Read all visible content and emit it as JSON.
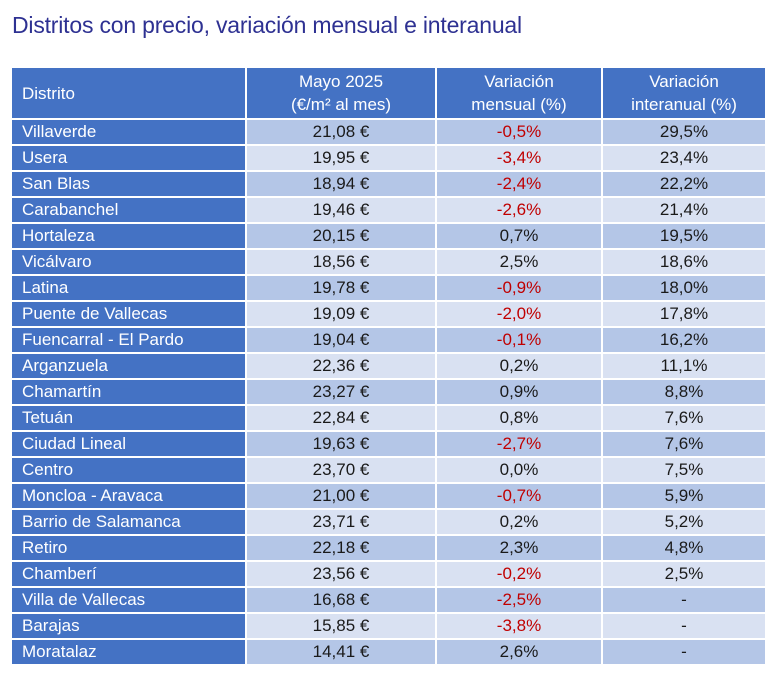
{
  "title": "Distritos con precio, variación mensual e interanual",
  "headers": {
    "district": "Distrito",
    "price_line1": "Mayo 2025",
    "price_line2": "(€/m² al mes)",
    "monthly_line1": "Variación",
    "monthly_line2": "mensual (%)",
    "yearly_line1": "Variación",
    "yearly_line2": "interanual (%)"
  },
  "colors": {
    "header_bg": "#4472c4",
    "row_dark": "#b4c6e7",
    "row_light": "#d9e1f2",
    "negative": "#c00000",
    "title": "#2e3192"
  },
  "rows": [
    {
      "district": "Villaverde",
      "price": "21,08 €",
      "monthly": "-0,5%",
      "yearly": "29,5%"
    },
    {
      "district": "Usera",
      "price": "19,95 €",
      "monthly": "-3,4%",
      "yearly": "23,4%"
    },
    {
      "district": "San Blas",
      "price": "18,94 €",
      "monthly": "-2,4%",
      "yearly": "22,2%"
    },
    {
      "district": "Carabanchel",
      "price": "19,46 €",
      "monthly": "-2,6%",
      "yearly": "21,4%"
    },
    {
      "district": "Hortaleza",
      "price": "20,15 €",
      "monthly": "0,7%",
      "yearly": "19,5%"
    },
    {
      "district": "Vicálvaro",
      "price": "18,56 €",
      "monthly": "2,5%",
      "yearly": "18,6%"
    },
    {
      "district": "Latina",
      "price": "19,78 €",
      "monthly": "-0,9%",
      "yearly": "18,0%"
    },
    {
      "district": "Puente de Vallecas",
      "price": "19,09 €",
      "monthly": "-2,0%",
      "yearly": "17,8%"
    },
    {
      "district": "Fuencarral - El Pardo",
      "price": "19,04 €",
      "monthly": "-0,1%",
      "yearly": "16,2%"
    },
    {
      "district": "Arganzuela",
      "price": "22,36 €",
      "monthly": "0,2%",
      "yearly": "11,1%"
    },
    {
      "district": "Chamartín",
      "price": "23,27 €",
      "monthly": "0,9%",
      "yearly": "8,8%"
    },
    {
      "district": "Tetuán",
      "price": "22,84 €",
      "monthly": "0,8%",
      "yearly": "7,6%"
    },
    {
      "district": "Ciudad Lineal",
      "price": "19,63 €",
      "monthly": "-2,7%",
      "yearly": "7,6%"
    },
    {
      "district": "Centro",
      "price": "23,70 €",
      "monthly": "0,0%",
      "yearly": "7,5%"
    },
    {
      "district": "Moncloa - Aravaca",
      "price": "21,00 €",
      "monthly": "-0,7%",
      "yearly": "5,9%"
    },
    {
      "district": "Barrio de Salamanca",
      "price": "23,71 €",
      "monthly": "0,2%",
      "yearly": "5,2%"
    },
    {
      "district": "Retiro",
      "price": "22,18 €",
      "monthly": "2,3%",
      "yearly": "4,8%"
    },
    {
      "district": "Chamberí",
      "price": "23,56 €",
      "monthly": "-0,2%",
      "yearly": "2,5%"
    },
    {
      "district": "Villa de Vallecas",
      "price": "16,68 €",
      "monthly": "-2,5%",
      "yearly": "-"
    },
    {
      "district": "Barajas",
      "price": "15,85 €",
      "monthly": "-3,8%",
      "yearly": "-"
    },
    {
      "district": "Moratalaz",
      "price": "14,41 €",
      "monthly": "2,6%",
      "yearly": "-"
    }
  ]
}
